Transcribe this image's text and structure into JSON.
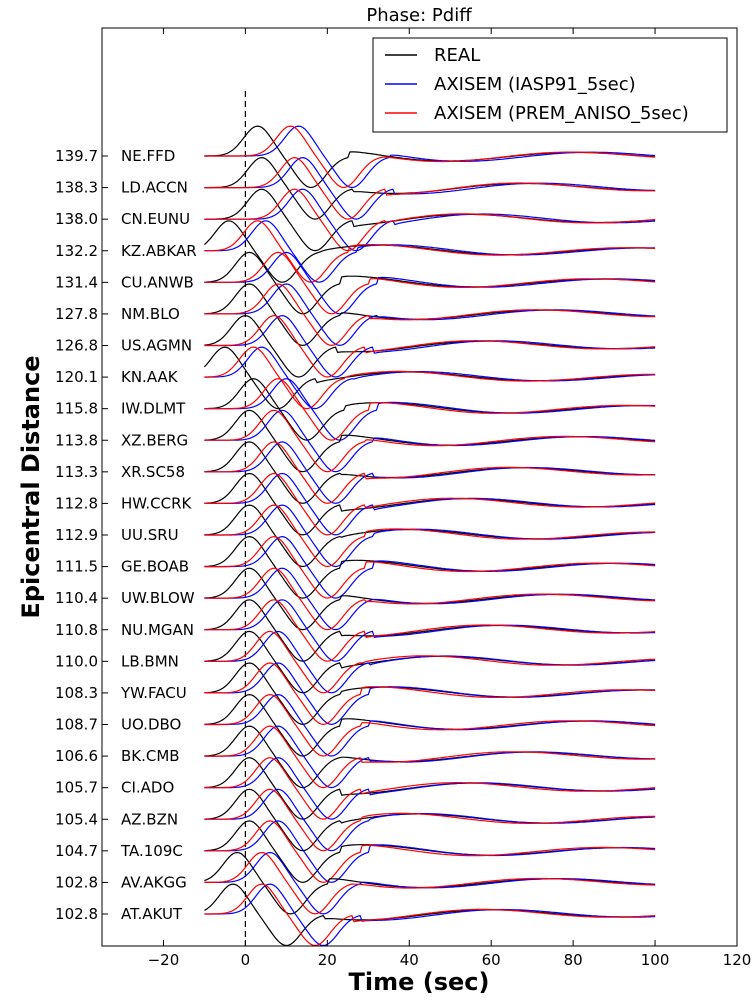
{
  "chart_data": {
    "type": "line",
    "title": "Phase: Pdiff",
    "xlabel": "Time (sec)",
    "ylabel": "Epicentral Distance",
    "xlim": [
      -35,
      120
    ],
    "xticks": [
      -20,
      0,
      20,
      40,
      60,
      80,
      100,
      120
    ],
    "xtick_labels": [
      "−20",
      "0",
      "20",
      "40",
      "60",
      "80",
      "100",
      "120"
    ],
    "grid": false,
    "legend_placement": "top-right",
    "reference_line_x": 0,
    "series": [
      {
        "name": "REAL",
        "color": "#000000"
      },
      {
        "name": "AXISEM (IASP91_5sec)",
        "color": "#0000ff"
      },
      {
        "name": "AXISEM (PREM_ANISO_5sec)",
        "color": "#ff0000"
      }
    ],
    "traces": [
      {
        "station": "NE.FFD",
        "distance": "139.7",
        "peak_time": 3,
        "synth_delay": 10
      },
      {
        "station": "LD.ACCN",
        "distance": "138.3",
        "peak_time": 4,
        "synth_delay": 10
      },
      {
        "station": "CN.EUNU",
        "distance": "138.0",
        "peak_time": 4,
        "synth_delay": 10
      },
      {
        "station": "KZ.ABKAR",
        "distance": "132.2",
        "peak_time": -4,
        "synth_delay": 9
      },
      {
        "station": "CU.ANWB",
        "distance": "131.4",
        "peak_time": 1,
        "synth_delay": 9
      },
      {
        "station": "NM.BLO",
        "distance": "127.8",
        "peak_time": 1,
        "synth_delay": 9
      },
      {
        "station": "US.AGMN",
        "distance": "126.8",
        "peak_time": 0,
        "synth_delay": 9
      },
      {
        "station": "KN.AAK",
        "distance": "120.1",
        "peak_time": -5,
        "synth_delay": 9
      },
      {
        "station": "IW.DLMT",
        "distance": "115.8",
        "peak_time": 2,
        "synth_delay": 8
      },
      {
        "station": "XZ.BERG",
        "distance": "113.8",
        "peak_time": 1,
        "synth_delay": 8
      },
      {
        "station": "XR.SC58",
        "distance": "113.3",
        "peak_time": 1,
        "synth_delay": 8
      },
      {
        "station": "HW.CCRK",
        "distance": "112.8",
        "peak_time": 1,
        "synth_delay": 8
      },
      {
        "station": "UU.SRU",
        "distance": "112.9",
        "peak_time": 1,
        "synth_delay": 8
      },
      {
        "station": "GE.BOAB",
        "distance": "111.5",
        "peak_time": 1,
        "synth_delay": 8
      },
      {
        "station": "UW.BLOW",
        "distance": "110.4",
        "peak_time": 1,
        "synth_delay": 8
      },
      {
        "station": "NU.MGAN",
        "distance": "110.8",
        "peak_time": 1,
        "synth_delay": 8
      },
      {
        "station": "LB.BMN",
        "distance": "110.0",
        "peak_time": 1,
        "synth_delay": 7
      },
      {
        "station": "YW.FACU",
        "distance": "108.3",
        "peak_time": 1,
        "synth_delay": 7
      },
      {
        "station": "UO.DBO",
        "distance": "108.7",
        "peak_time": 1,
        "synth_delay": 7
      },
      {
        "station": "BK.CMB",
        "distance": "106.6",
        "peak_time": 1,
        "synth_delay": 7
      },
      {
        "station": "CI.ADO",
        "distance": "105.7",
        "peak_time": 1,
        "synth_delay": 7
      },
      {
        "station": "AZ.BZN",
        "distance": "105.4",
        "peak_time": 1,
        "synth_delay": 7
      },
      {
        "station": "TA.109C",
        "distance": "104.7",
        "peak_time": 1,
        "synth_delay": 7
      },
      {
        "station": "AV.AKGG",
        "distance": "102.8",
        "peak_time": -2,
        "synth_delay": 8
      },
      {
        "station": "AT.AKUT",
        "distance": "102.8",
        "peak_time": -3,
        "synth_delay": 9
      }
    ]
  }
}
